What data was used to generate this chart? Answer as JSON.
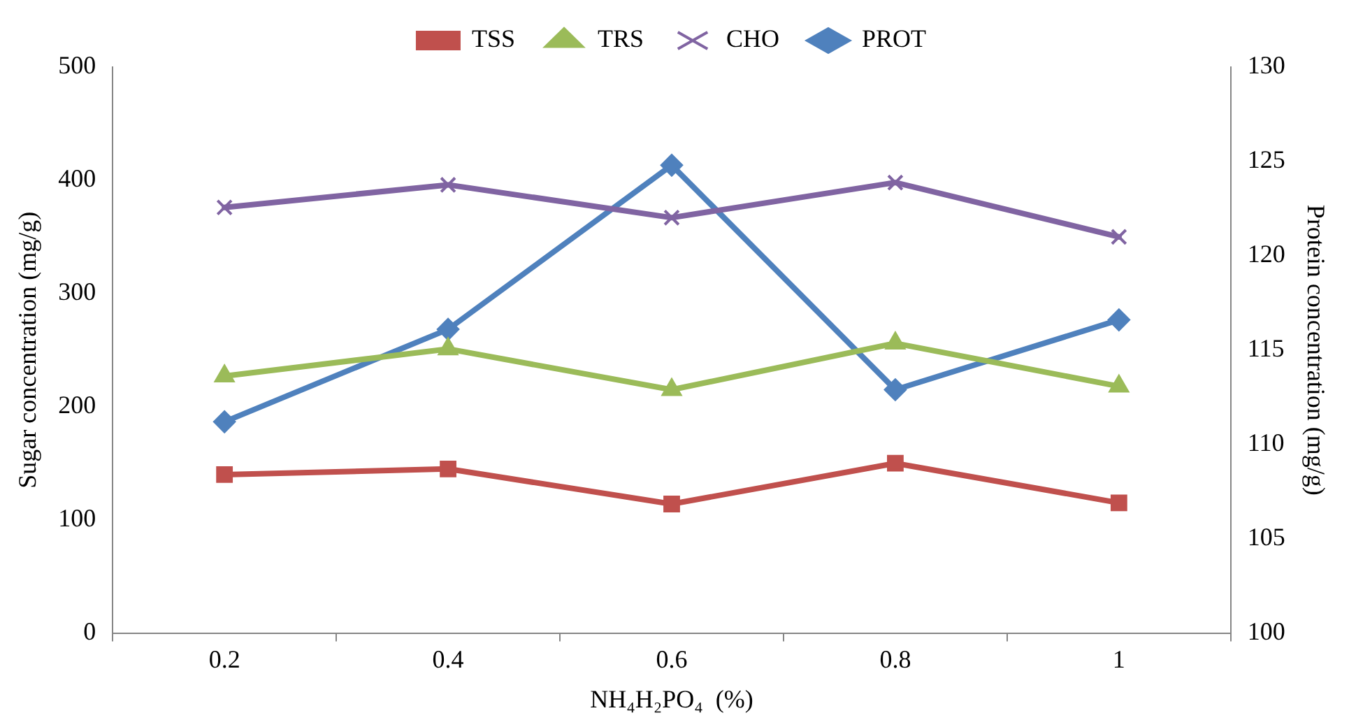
{
  "chart_data": {
    "type": "line",
    "categories": [
      "0.2",
      "0.4",
      "0.6",
      "0.8",
      "1"
    ],
    "xlabel": "NH₄H₂PO₄  (%)",
    "ylabel": "Sugar concentration (mg/g)",
    "y2label": "Protein concentration (mg/g)",
    "ylim": [
      0,
      500
    ],
    "yticks": [
      0,
      100,
      200,
      300,
      400,
      500
    ],
    "y2lim": [
      100,
      130
    ],
    "y2ticks": [
      100,
      105,
      110,
      115,
      120,
      125,
      130
    ],
    "grid": false,
    "legend": "top",
    "line_style": "solid",
    "series": [
      {
        "name": "TSS",
        "color": "#c0504d",
        "marker": "square",
        "values": [
          140,
          145,
          114,
          150,
          115
        ]
      },
      {
        "name": "TRS",
        "color": "#9bbb59",
        "marker": "triangle",
        "values": [
          227,
          251,
          215,
          256,
          218
        ]
      },
      {
        "name": "CHO",
        "color": "#8064a2",
        "marker": "cross",
        "values": [
          376,
          396,
          367,
          398,
          350
        ]
      },
      {
        "name": "PROT",
        "color": "#4f81bd",
        "marker": "diamond",
        "axis": "y2",
        "values": [
          111.2,
          116.1,
          124.8,
          112.9,
          116.6
        ]
      }
    ]
  }
}
